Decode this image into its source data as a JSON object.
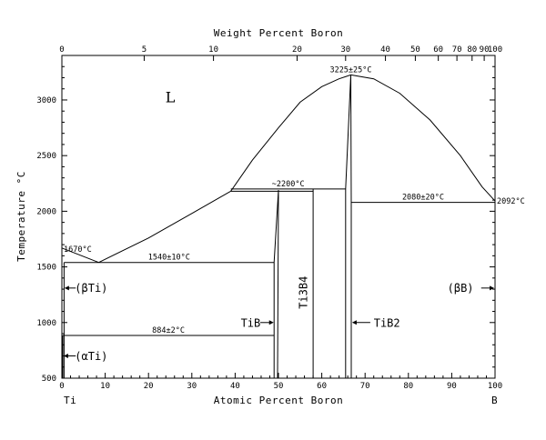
{
  "chart_data": {
    "type": "line",
    "title": "",
    "xlabel": "Atomic Percent Boron",
    "ylabel": "Temperature °C",
    "top_axis_label": "Weight Percent Boron",
    "xlim": [
      0,
      100
    ],
    "ylim": [
      500,
      3400
    ],
    "x_ticks": [
      0,
      10,
      20,
      30,
      40,
      50,
      60,
      70,
      80,
      90,
      100
    ],
    "y_ticks": [
      500,
      1000,
      1500,
      2000,
      2500,
      3000
    ],
    "top_ticks": [
      {
        "wt": 0,
        "at": 0
      },
      {
        "wt": 5,
        "at": 19
      },
      {
        "wt": 10,
        "at": 35
      },
      {
        "wt": 20,
        "at": 54.3
      },
      {
        "wt": 30,
        "at": 65.5
      },
      {
        "wt": 40,
        "at": 74.7
      },
      {
        "wt": 50,
        "at": 81.6
      },
      {
        "wt": 60,
        "at": 86.9
      },
      {
        "wt": 70,
        "at": 91.2
      },
      {
        "wt": 80,
        "at": 94.7
      },
      {
        "wt": 90,
        "at": 97.5
      },
      {
        "wt": 100,
        "at": 100
      }
    ],
    "endpoint_labels": {
      "left": "Ti",
      "right": "B"
    },
    "series": [
      {
        "id": "liquidus-ti",
        "points": [
          [
            0,
            1670
          ],
          [
            8.5,
            1540
          ]
        ]
      },
      {
        "id": "liquidus-mid",
        "points": [
          [
            8.5,
            1540
          ],
          [
            20,
            1760
          ],
          [
            30,
            1980
          ],
          [
            39,
            2180
          ]
        ]
      },
      {
        "id": "liquidus-tib2",
        "points": [
          [
            39,
            2180
          ],
          [
            44,
            2460
          ],
          [
            50,
            2750
          ],
          [
            55,
            2980
          ],
          [
            60,
            3120
          ],
          [
            64,
            3190
          ],
          [
            66.7,
            3225
          ]
        ]
      },
      {
        "id": "liquidus-b",
        "points": [
          [
            66.7,
            3225
          ],
          [
            72,
            3190
          ],
          [
            78,
            3060
          ],
          [
            85,
            2820
          ],
          [
            92,
            2500
          ],
          [
            97,
            2220
          ],
          [
            100,
            2092
          ]
        ]
      },
      {
        "id": "tib-left",
        "points": [
          [
            49,
            500
          ],
          [
            49,
            1540
          ],
          [
            50,
            2190
          ]
        ]
      },
      {
        "id": "tib-right",
        "points": [
          [
            49.8,
            500
          ],
          [
            50,
            2190
          ]
        ]
      },
      {
        "id": "ti3b4-line",
        "points": [
          [
            58,
            500
          ],
          [
            58,
            2200
          ]
        ]
      },
      {
        "id": "tib2-left",
        "points": [
          [
            65.5,
            500
          ],
          [
            65.5,
            2200
          ],
          [
            66.7,
            3225
          ]
        ]
      },
      {
        "id": "tib2-right",
        "points": [
          [
            66.8,
            500
          ],
          [
            66.8,
            2080
          ],
          [
            66.7,
            3225
          ]
        ]
      },
      {
        "id": "beta-ti-solvus",
        "points": [
          [
            0.5,
            500
          ],
          [
            0.5,
            1540
          ]
        ]
      },
      {
        "id": "alpha-ti-solvus",
        "points": [
          [
            0.2,
            500
          ],
          [
            0.2,
            884
          ]
        ]
      }
    ],
    "invariants": [
      {
        "id": "eutectic-1540",
        "x": [
          0.5,
          49
        ],
        "y": 1540,
        "label": "1540±10°C"
      },
      {
        "id": "eutectoid-884",
        "x": [
          0.2,
          49
        ],
        "y": 884,
        "label": "884±2°C"
      },
      {
        "id": "peritectic-2200-upper",
        "x": [
          39,
          65.5
        ],
        "y": 2200,
        "label": "~2200°C"
      },
      {
        "id": "peritectic-2200-lower",
        "x": [
          39,
          58
        ],
        "y": 2180,
        "label": ""
      },
      {
        "id": "eutectic-2080",
        "x": [
          66.8,
          100
        ],
        "y": 2080,
        "label": "2080±20°C"
      }
    ],
    "point_labels": [
      {
        "id": "ti-melting",
        "x": 0,
        "y": 1670,
        "label": "1670°C"
      },
      {
        "id": "tib2-melting",
        "x": 66.7,
        "y": 3225,
        "label": "3225±25°C"
      },
      {
        "id": "b-melting",
        "x": 100,
        "y": 2092,
        "label": "2092°C"
      }
    ],
    "phase_labels": [
      {
        "id": "liquid",
        "label": "L"
      },
      {
        "id": "beta-ti",
        "label": "(βTi)"
      },
      {
        "id": "alpha-ti",
        "label": "(αTi)"
      },
      {
        "id": "tib",
        "label": "TiB"
      },
      {
        "id": "ti3b4",
        "label": "Ti3B4"
      },
      {
        "id": "tib2",
        "label": "TiB2"
      },
      {
        "id": "beta-b",
        "label": "(βB)"
      }
    ]
  }
}
